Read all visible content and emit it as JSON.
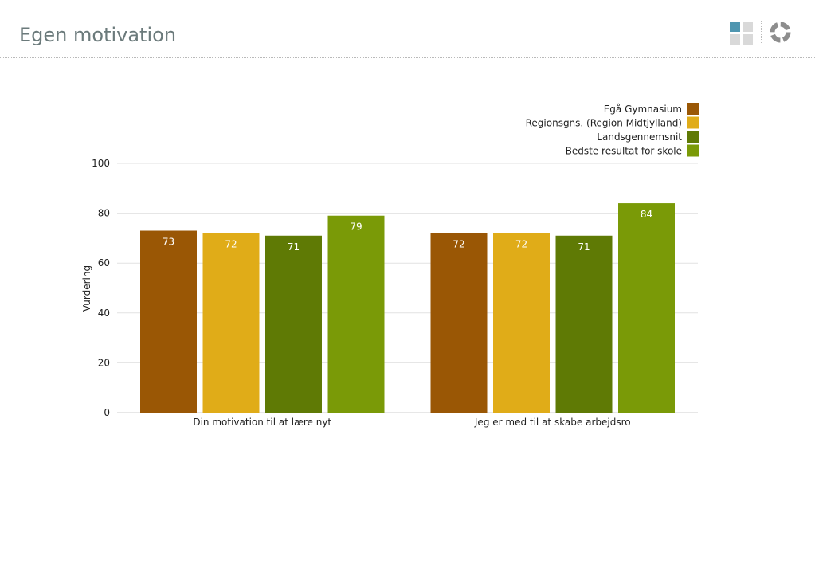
{
  "page": {
    "title": "Egen motivation"
  },
  "icons": {
    "view_grid": "grid-view-icon",
    "view_ring": "ring-chart-icon"
  },
  "chart_data": {
    "type": "bar",
    "ylabel": "Vurdering",
    "ylim": [
      0,
      100
    ],
    "yticks": [
      0,
      20,
      40,
      60,
      80,
      100
    ],
    "grid": true,
    "legend_position": "top-right",
    "categories": [
      "Din motivation til at lære nyt",
      "Jeg er med til at skabe arbejdsro"
    ],
    "series": [
      {
        "name": "Egå Gymnasium",
        "values": [
          73,
          72
        ],
        "color": "#9a5705"
      },
      {
        "name": "Regionsgns. (Region Midtjylland)",
        "values": [
          72,
          72
        ],
        "color": "#e0ac18"
      },
      {
        "name": "Landsgennemsnit",
        "values": [
          71,
          71
        ],
        "color": "#5f7a05"
      },
      {
        "name": "Bedste resultat for skole",
        "values": [
          79,
          84
        ],
        "color": "#7a9a07"
      }
    ]
  }
}
